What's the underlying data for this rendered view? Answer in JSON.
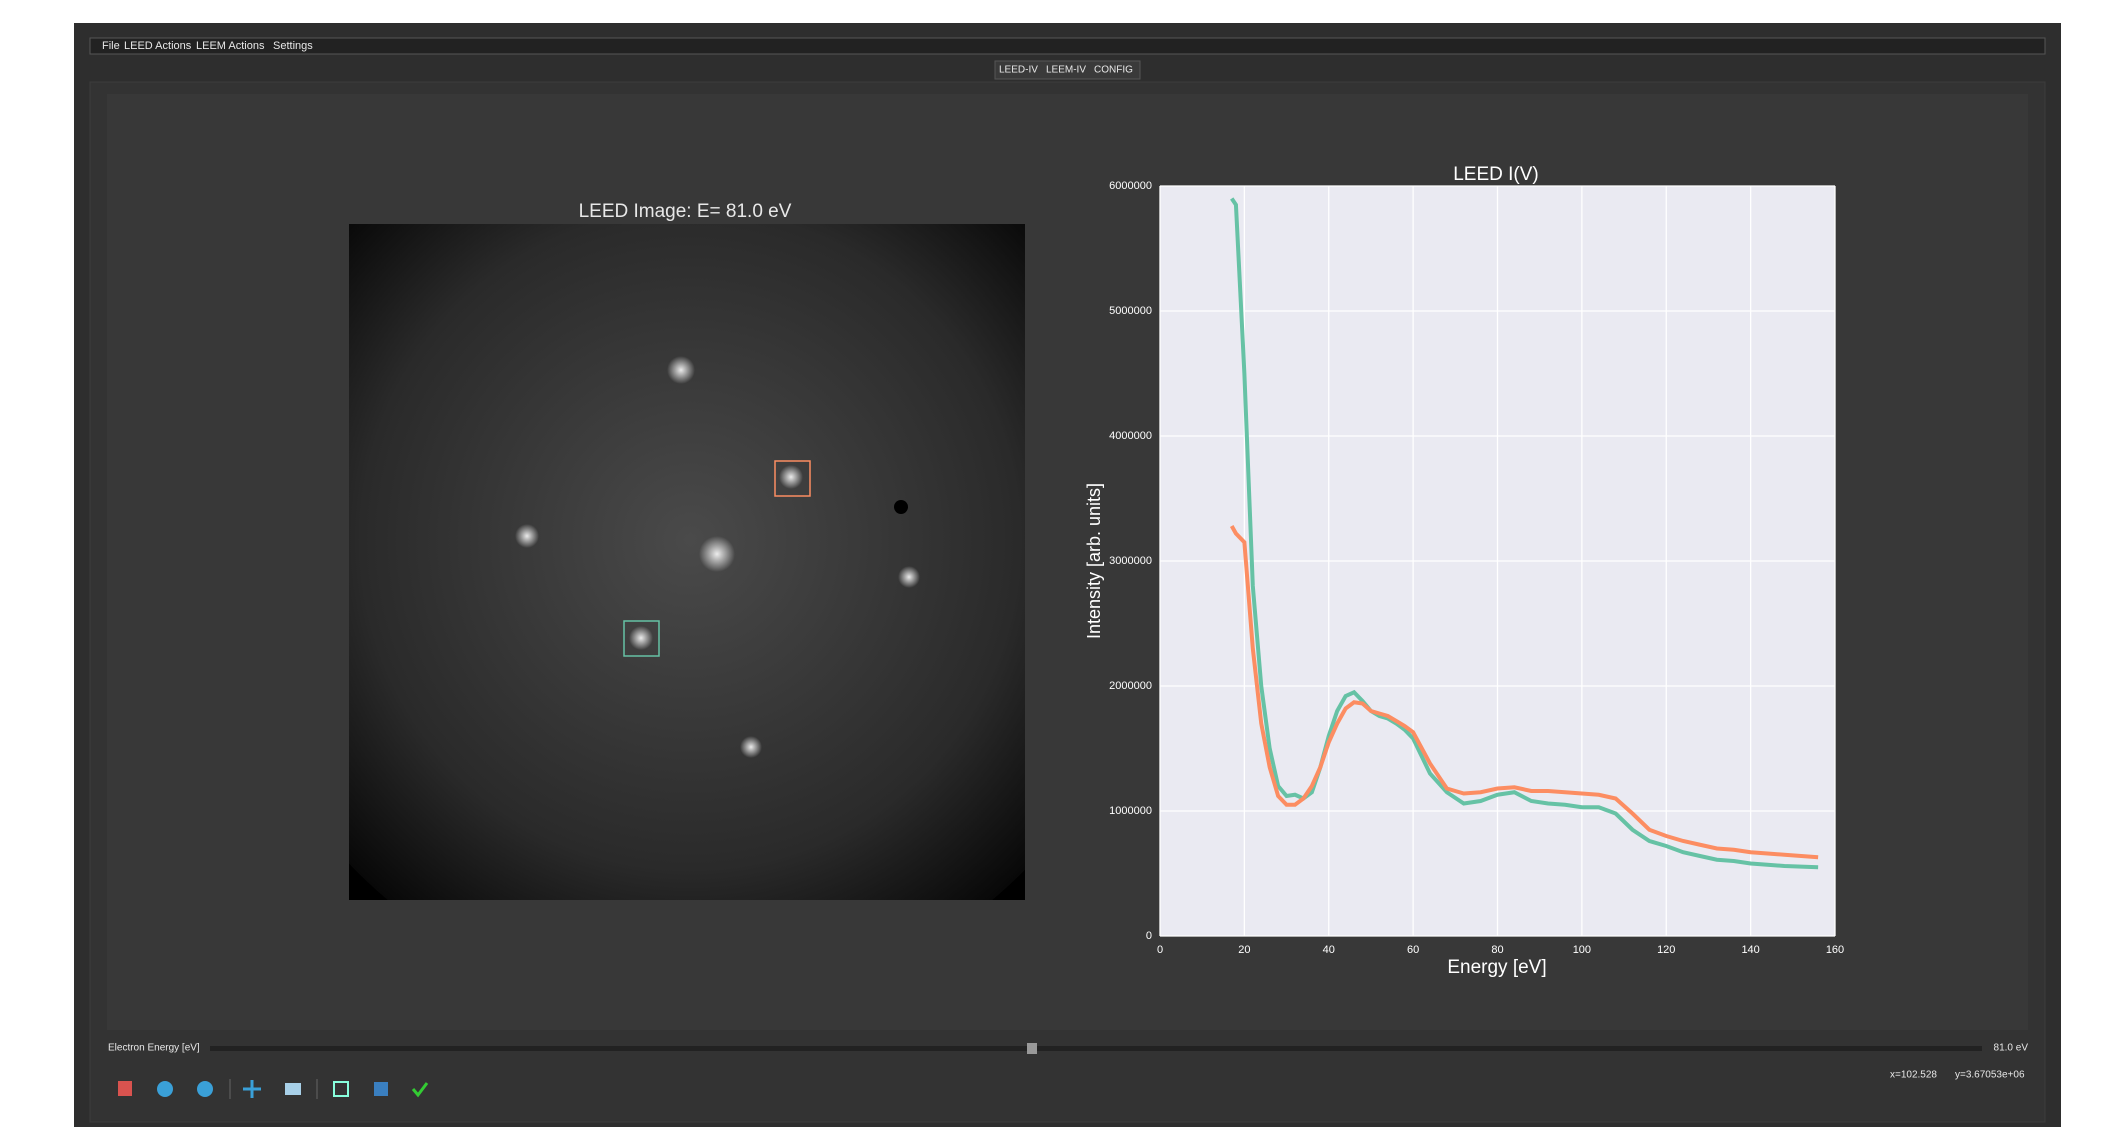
{
  "menu": [
    "File",
    "LEED Actions",
    "LEEM Actions",
    "Settings"
  ],
  "tabs": [
    "LEED-IV",
    "LEEM-IV",
    "CONFIG"
  ],
  "image_title": "LEED Image: E= 81.0 eV",
  "slider": {
    "label": "Electron Energy [eV]",
    "value_label": "81.0 eV"
  },
  "status": {
    "x": "x=102.528",
    "y": "y=3.67053e+06"
  },
  "chart_data": {
    "type": "line",
    "title": "LEED I(V)",
    "x_label": "Energy [eV]",
    "y_label": "Intensity [arb. units]",
    "x": [
      17,
      18,
      20,
      22,
      24,
      26,
      28,
      30,
      32,
      34,
      36,
      38,
      40,
      42,
      44,
      46,
      48,
      50,
      52,
      54,
      56,
      58,
      60,
      64,
      68,
      72,
      76,
      80,
      84,
      88,
      92,
      96,
      100,
      104,
      108,
      112,
      116,
      120,
      124,
      128,
      132,
      136,
      140,
      144,
      148,
      152,
      156
    ],
    "series": [
      {
        "color": "#66c2a5",
        "values": [
          5900000,
          5850000,
          4500000,
          2800000,
          2000000,
          1500000,
          1200000,
          1120000,
          1130000,
          1100000,
          1150000,
          1350000,
          1600000,
          1800000,
          1920000,
          1950000,
          1880000,
          1800000,
          1760000,
          1740000,
          1700000,
          1650000,
          1580000,
          1300000,
          1150000,
          1060000,
          1080000,
          1130000,
          1150000,
          1080000,
          1060000,
          1050000,
          1030000,
          1030000,
          980000,
          850000,
          760000,
          720000,
          670000,
          640000,
          610000,
          600000,
          580000,
          570000,
          560000,
          555000,
          550000
        ]
      },
      {
        "color": "#fc8d62",
        "values": [
          3280000,
          3220000,
          3150000,
          2300000,
          1700000,
          1350000,
          1120000,
          1050000,
          1050000,
          1100000,
          1200000,
          1350000,
          1550000,
          1700000,
          1820000,
          1870000,
          1860000,
          1800000,
          1780000,
          1760000,
          1720000,
          1680000,
          1630000,
          1380000,
          1180000,
          1140000,
          1150000,
          1180000,
          1190000,
          1160000,
          1160000,
          1150000,
          1140000,
          1130000,
          1100000,
          980000,
          850000,
          800000,
          760000,
          730000,
          700000,
          690000,
          670000,
          660000,
          650000,
          640000,
          630000
        ]
      }
    ],
    "xlim": [
      0,
      160
    ],
    "xticks": [
      0,
      20,
      40,
      60,
      80,
      100,
      120,
      140,
      160
    ],
    "ylim": [
      0,
      6000000
    ],
    "yticks": [
      0,
      1000000,
      2000000,
      3000000,
      4000000,
      5000000,
      6000000
    ],
    "grid": true
  }
}
